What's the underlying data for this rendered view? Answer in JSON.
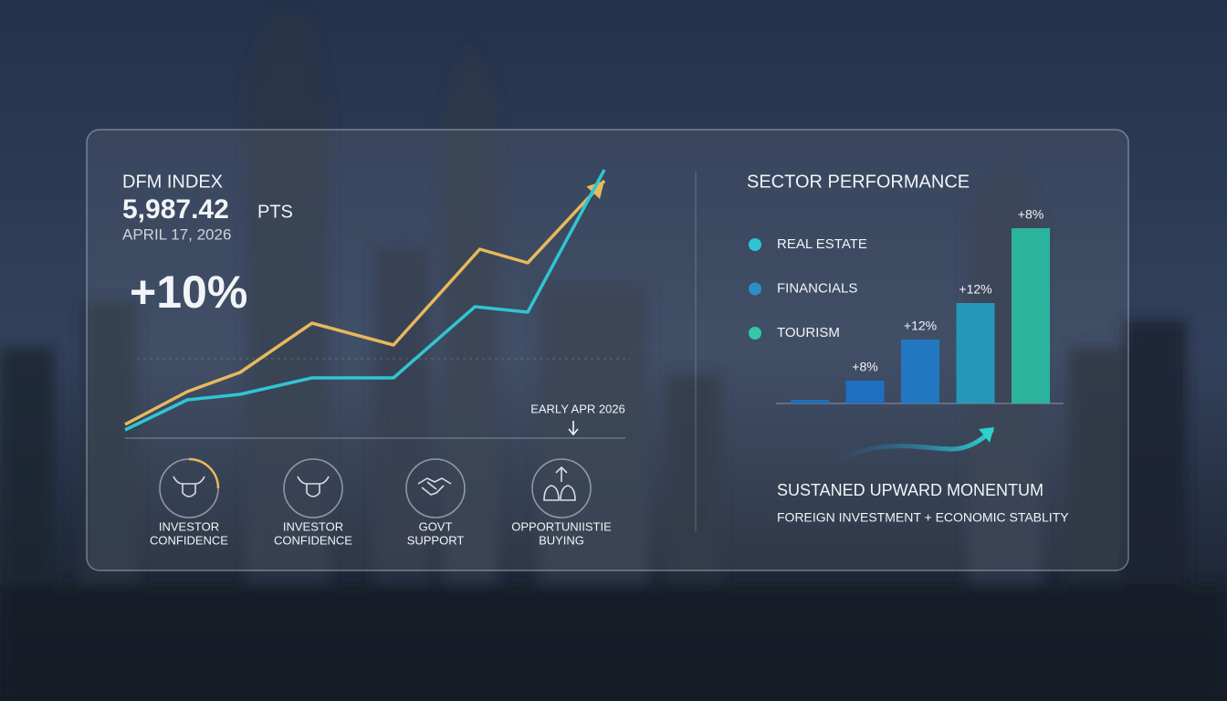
{
  "header": {
    "title": "DFM INDEX",
    "value": "5,987.42",
    "unit": "PTS",
    "date": "APRIL 17, 2026",
    "change": "+10%"
  },
  "chart_data": [
    {
      "type": "line",
      "xlim": [
        0,
        100
      ],
      "ylim": [
        0,
        100
      ],
      "series": [
        {
          "color": "#e6b95c",
          "x": [
            0,
            13,
            24,
            39,
            56,
            74,
            84,
            100
          ],
          "values": [
            5,
            17,
            24,
            42,
            34,
            69,
            64,
            94
          ]
        },
        {
          "color": "#2fc6d2",
          "x": [
            0,
            13,
            24,
            39,
            56,
            73,
            84,
            100
          ],
          "values": [
            3,
            14,
            16,
            22,
            22,
            48,
            46,
            98
          ]
        }
      ],
      "annotation": "EARLY APR 2026"
    },
    {
      "type": "bar",
      "title": "SECTOR PERFORMANCE",
      "legend": [
        {
          "name": "REAL ESTATE",
          "color": "#2ec4d6"
        },
        {
          "name": "FINANCIALS",
          "color": "#2a8fc9"
        },
        {
          "name": "TOURISM",
          "color": "#35c7a8"
        }
      ],
      "categories": [
        null,
        null,
        null,
        null,
        null
      ],
      "values": [
        2,
        12.5,
        35,
        55,
        96
      ],
      "bar_labels": [
        null,
        "+8%",
        "+12%",
        "+12%",
        "+8%"
      ],
      "colors": [
        "#1e6fb5",
        "#1f6fc0",
        "#2278c0",
        "#2598b8",
        "#2bb39e"
      ],
      "ylim": [
        0,
        100
      ]
    }
  ],
  "drivers": [
    {
      "lines": [
        "INVESTOR",
        "CONFIDENCE"
      ]
    },
    {
      "lines": [
        "INVESTOR",
        "CONFIDENCE"
      ]
    },
    {
      "lines": [
        "GOVT",
        "SUPPORT"
      ]
    },
    {
      "lines": [
        "OPPORTUNIISTIE",
        "BUYING"
      ]
    }
  ],
  "footer": {
    "title": "SUSTANED UPWARD MONENTUM",
    "subtitle": "FOREIGN INVESTMENT + ECONOMIC STABLITY"
  }
}
